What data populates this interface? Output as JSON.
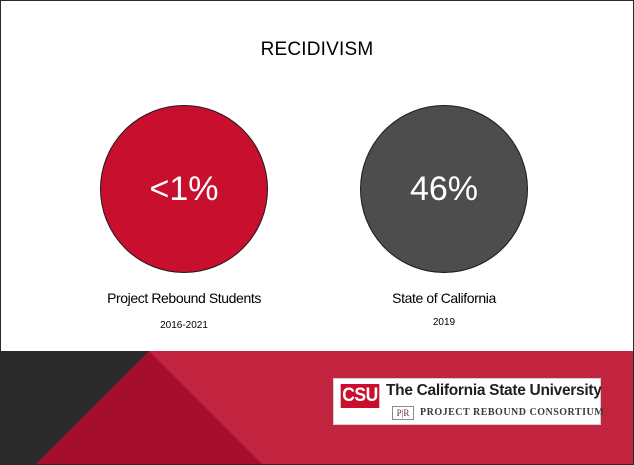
{
  "slide": {
    "title": "RECIDIVISM",
    "stats": [
      {
        "value": "<1%",
        "label": "Project Rebound Students",
        "period": "2016-2021",
        "color": "#c8102e"
      },
      {
        "value": "46%",
        "label": "State of California",
        "period": "2019",
        "color": "#4d4d4d"
      }
    ]
  },
  "footer": {
    "logo": {
      "mark": "CSU",
      "name": "The California State University",
      "sub_mark_left": "P",
      "sub_mark_right": "R",
      "sub_name": "PROJECT REBOUND CONSORTIUM"
    },
    "colors": {
      "band_red": "#c2243f",
      "band_dark_red": "#a50f2d",
      "band_black": "#2a2a2a"
    }
  }
}
